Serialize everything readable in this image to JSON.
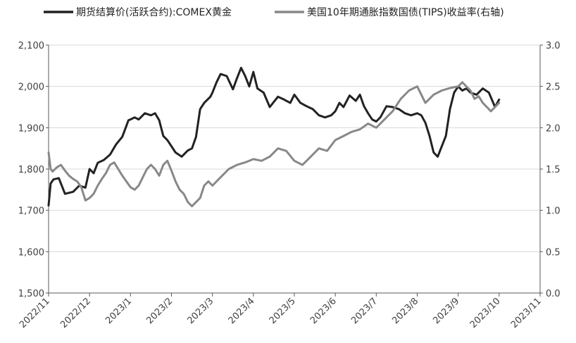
{
  "chart_data": {
    "type": "line",
    "legend_position": "top",
    "grid": "horizontal",
    "x_tick_labels": [
      "2022/11",
      "2022/12",
      "2023/1",
      "2023/2",
      "2023/3",
      "2023/4",
      "2023/5",
      "2023/6",
      "2023/7",
      "2023/8",
      "2023/9",
      "2023/10",
      "2023/11"
    ],
    "left_axis": {
      "ylim": [
        1500,
        2100
      ],
      "ticks": [
        "1,500",
        "1,600",
        "1,700",
        "1,800",
        "1,900",
        "2,000",
        "2,100"
      ],
      "tick_values": [
        1500,
        1600,
        1700,
        1800,
        1900,
        2000,
        2100
      ]
    },
    "right_axis": {
      "ylim": [
        0.0,
        3.0
      ],
      "ticks": [
        "0.0",
        "0.5",
        "1.0",
        "1.5",
        "2.0",
        "2.5",
        "3.0"
      ],
      "tick_values": [
        0,
        0.5,
        1,
        1.5,
        2,
        2.5,
        3
      ]
    },
    "series": [
      {
        "name": "期货结算价(活跃合约):COMEX黄金",
        "axis": "left",
        "color": "#222222",
        "x": [
          0,
          0.05,
          0.12,
          0.25,
          0.4,
          0.6,
          0.75,
          0.9,
          1.0,
          1.1,
          1.2,
          1.35,
          1.5,
          1.65,
          1.8,
          1.95,
          2.0,
          2.1,
          2.2,
          2.35,
          2.5,
          2.6,
          2.7,
          2.8,
          2.9,
          3.0,
          3.1,
          3.25,
          3.4,
          3.5,
          3.6,
          3.7,
          3.8,
          3.95,
          4.0,
          4.1,
          4.2,
          4.35,
          4.5,
          4.6,
          4.7,
          4.8,
          4.9,
          5.0,
          5.1,
          5.25,
          5.4,
          5.6,
          5.75,
          5.9,
          6.0,
          6.15,
          6.3,
          6.45,
          6.6,
          6.75,
          6.9,
          7.0,
          7.1,
          7.2,
          7.35,
          7.5,
          7.6,
          7.7,
          7.8,
          7.9,
          8.0,
          8.1,
          8.25,
          8.4,
          8.55,
          8.7,
          8.85,
          9.0,
          9.1,
          9.2,
          9.3,
          9.4,
          9.5,
          9.6,
          9.7,
          9.8,
          9.9,
          10.0,
          10.1,
          10.2,
          10.3,
          10.45,
          10.6,
          10.75,
          10.9,
          11.0
        ],
        "values": [
          1712,
          1765,
          1775,
          1778,
          1740,
          1745,
          1760,
          1755,
          1800,
          1790,
          1815,
          1822,
          1835,
          1860,
          1878,
          1918,
          1920,
          1925,
          1920,
          1935,
          1930,
          1935,
          1918,
          1880,
          1870,
          1855,
          1840,
          1830,
          1845,
          1850,
          1878,
          1945,
          1960,
          1975,
          1985,
          2010,
          2030,
          2025,
          1993,
          2020,
          2045,
          2025,
          2000,
          2035,
          1995,
          1985,
          1950,
          1975,
          1968,
          1960,
          1980,
          1960,
          1952,
          1945,
          1930,
          1925,
          1930,
          1940,
          1960,
          1950,
          1978,
          1965,
          1980,
          1952,
          1935,
          1920,
          1915,
          1925,
          1952,
          1950,
          1945,
          1935,
          1930,
          1935,
          1930,
          1912,
          1880,
          1840,
          1830,
          1855,
          1880,
          1945,
          1985,
          2000,
          1990,
          1995,
          1985,
          1980,
          1995,
          1985,
          1950,
          1968
        ],
        "missing_ranges": [
          [
            4.0,
            4.03
          ]
        ]
      },
      {
        "name": "美国10年期通胀指数国债(TIPS)收益率(右轴)",
        "axis": "right",
        "color": "#888888",
        "x": [
          0,
          0.05,
          0.1,
          0.2,
          0.3,
          0.4,
          0.5,
          0.6,
          0.7,
          0.8,
          0.9,
          1.0,
          1.1,
          1.2,
          1.3,
          1.4,
          1.5,
          1.6,
          1.7,
          1.8,
          1.9,
          2.0,
          2.1,
          2.2,
          2.3,
          2.4,
          2.5,
          2.6,
          2.7,
          2.8,
          2.9,
          3.0,
          3.1,
          3.2,
          3.3,
          3.4,
          3.5,
          3.6,
          3.7,
          3.8,
          3.9,
          4.0,
          4.2,
          4.4,
          4.6,
          4.8,
          5.0,
          5.2,
          5.4,
          5.6,
          5.8,
          6.0,
          6.2,
          6.4,
          6.6,
          6.8,
          7.0,
          7.2,
          7.4,
          7.6,
          7.8,
          8.0,
          8.2,
          8.4,
          8.6,
          8.8,
          9.0,
          9.2,
          9.4,
          9.6,
          9.8,
          10.0,
          10.1,
          10.2,
          10.3,
          10.4,
          10.5,
          10.6,
          10.7,
          10.8,
          10.9,
          11.0
        ],
        "values": [
          1.7,
          1.5,
          1.47,
          1.52,
          1.55,
          1.48,
          1.42,
          1.38,
          1.35,
          1.28,
          1.12,
          1.15,
          1.2,
          1.3,
          1.38,
          1.45,
          1.55,
          1.58,
          1.5,
          1.42,
          1.35,
          1.28,
          1.25,
          1.3,
          1.4,
          1.5,
          1.55,
          1.5,
          1.42,
          1.55,
          1.6,
          1.48,
          1.35,
          1.25,
          1.2,
          1.1,
          1.05,
          1.1,
          1.15,
          1.3,
          1.35,
          1.3,
          1.4,
          1.5,
          1.55,
          1.58,
          1.62,
          1.6,
          1.65,
          1.75,
          1.72,
          1.6,
          1.55,
          1.65,
          1.75,
          1.72,
          1.85,
          1.9,
          1.95,
          1.98,
          2.05,
          2.0,
          2.1,
          2.2,
          2.35,
          2.45,
          2.5,
          2.3,
          2.4,
          2.45,
          2.48,
          2.5,
          2.55,
          2.5,
          2.45,
          2.35,
          2.38,
          2.3,
          2.25,
          2.2,
          2.25,
          2.3
        ],
        "missing_ranges": [
          [
            9.85,
            9.97
          ]
        ]
      }
    ]
  }
}
